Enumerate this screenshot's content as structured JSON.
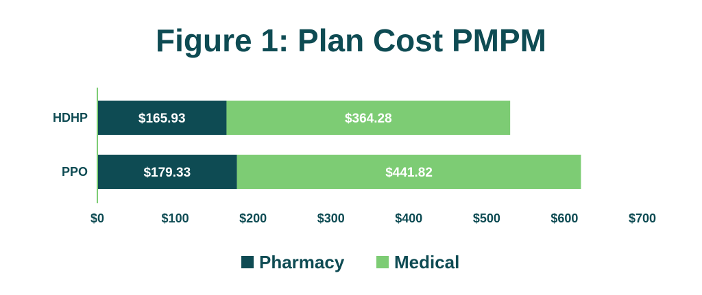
{
  "chart_data": {
    "type": "bar",
    "orientation": "horizontal",
    "stacked": true,
    "title": "Figure 1: Plan Cost PMPM",
    "categories": [
      "HDHP",
      "PPO"
    ],
    "series": [
      {
        "name": "Pharmacy",
        "values": [
          165.93,
          179.33
        ],
        "labels": [
          "$165.93",
          "$179.33"
        ],
        "color": "#0e4b53"
      },
      {
        "name": "Medical",
        "values": [
          364.28,
          441.82
        ],
        "labels": [
          "$364.28",
          "$441.82"
        ],
        "color": "#7dcc74"
      }
    ],
    "xlim": [
      0,
      700
    ],
    "xticks": [
      {
        "value": 0,
        "label": "$0"
      },
      {
        "value": 100,
        "label": "$100"
      },
      {
        "value": 200,
        "label": "$200"
      },
      {
        "value": 300,
        "label": "$300"
      },
      {
        "value": 400,
        "label": "$400"
      },
      {
        "value": 500,
        "label": "$500"
      },
      {
        "value": 600,
        "label": "$600"
      },
      {
        "value": 700,
        "label": "$700"
      }
    ],
    "grid": false,
    "legend_position": "bottom",
    "colors": {
      "text": "#0e4b53",
      "axis": "#7dcc74",
      "data_label": "#ffffff"
    }
  }
}
